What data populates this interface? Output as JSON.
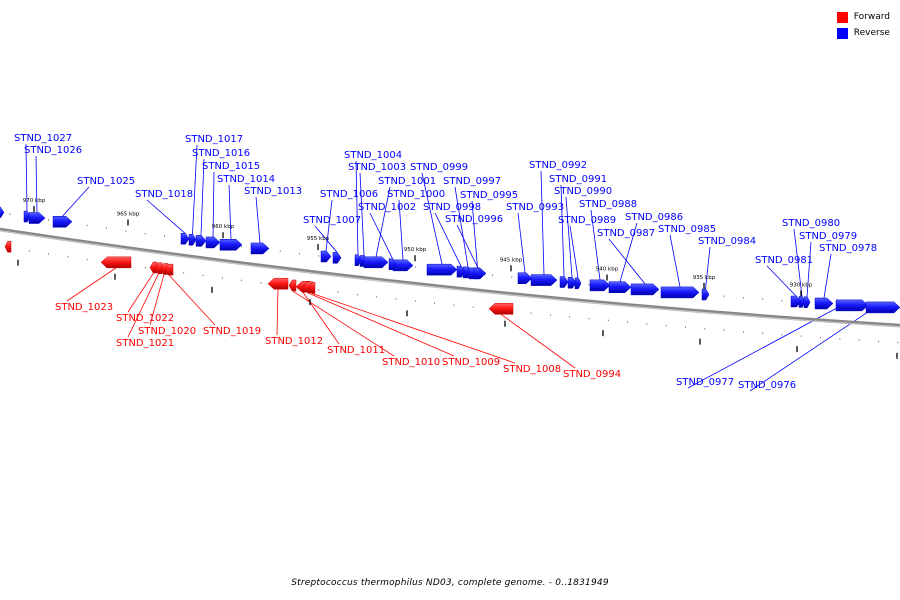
{
  "title": "Streptococcus thermophilus ND03, complete genome. - 0..1831949",
  "legend": [
    {
      "label": "Forward",
      "color": "#ff0000"
    },
    {
      "label": "Reverse",
      "color": "#0000ff"
    }
  ],
  "colors": {
    "forward": "#ff0000",
    "reverse": "#0000ff",
    "backbone": "#777777",
    "tick": "#000000"
  },
  "scale": {
    "kbp_labels": [
      "970 kbp",
      "965 kbp",
      "960 kbp",
      "955 kbp",
      "950 kbp",
      "945 kbp",
      "940 kbp",
      "935 kbp",
      "930 kbp"
    ]
  },
  "genes_reverse": [
    "STND_1027",
    "STND_1026",
    "STND_1025",
    "STND_1018",
    "STND_1017",
    "STND_1016",
    "STND_1015",
    "STND_1014",
    "STND_1013",
    "STND_1004",
    "STND_1003",
    "STND_1006",
    "STND_1001",
    "STND_1007",
    "STND_1000",
    "STND_1002",
    "STND_0999",
    "STND_0997",
    "STND_0998",
    "STND_0995",
    "STND_0996",
    "STND_0993",
    "STND_0992",
    "STND_0991",
    "STND_0990",
    "STND_0988",
    "STND_0989",
    "STND_0986",
    "STND_0987",
    "STND_0985",
    "STND_0984",
    "STND_0980",
    "STND_0979",
    "STND_0978",
    "STND_0981",
    "STND_0977",
    "STND_0976"
  ],
  "genes_forward": [
    "STND_1023",
    "STND_1022",
    "STND_1020",
    "STND_1021",
    "STND_1019",
    "STND_1012",
    "STND_1011",
    "STND_1010",
    "STND_1009",
    "STND_1008",
    "STND_0994"
  ]
}
